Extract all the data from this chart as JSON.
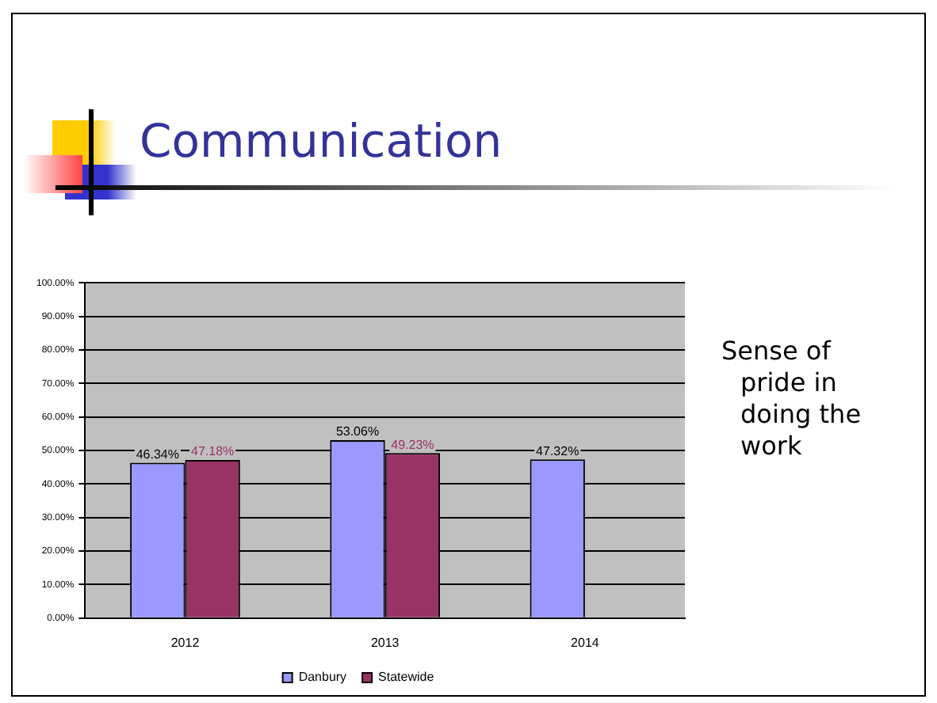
{
  "chart_data": {
    "type": "bar",
    "title": "Communication",
    "categories": [
      "2012",
      "2013",
      "2014"
    ],
    "series": [
      {
        "name": "Danbury",
        "color": "#9999ff",
        "values": [
          46.34,
          53.06,
          47.32
        ],
        "value_labels": [
          "46.34%",
          "53.06%",
          "47.32%"
        ]
      },
      {
        "name": "Statewide",
        "color": "#993366",
        "values": [
          47.18,
          49.23,
          null
        ],
        "value_labels": [
          "47.18%",
          "49.23%",
          null
        ]
      }
    ],
    "ylim": [
      0,
      100
    ],
    "yticks": [
      {
        "value": 0,
        "label": "0.00%"
      },
      {
        "value": 10,
        "label": "10.00%"
      },
      {
        "value": 20,
        "label": "20.00%"
      },
      {
        "value": 30,
        "label": "30.00%"
      },
      {
        "value": 40,
        "label": "40.00%"
      },
      {
        "value": 50,
        "label": "50.00%"
      },
      {
        "value": 60,
        "label": "60.00%"
      },
      {
        "value": 70,
        "label": "70.00%"
      },
      {
        "value": 80,
        "label": "80.00%"
      },
      {
        "value": 90,
        "label": "90.00%"
      },
      {
        "value": 100,
        "label": "100.00%"
      }
    ],
    "grid": "y",
    "legend": "bottom",
    "annotations": [
      "Sense of pride in doing the work"
    ]
  }
}
